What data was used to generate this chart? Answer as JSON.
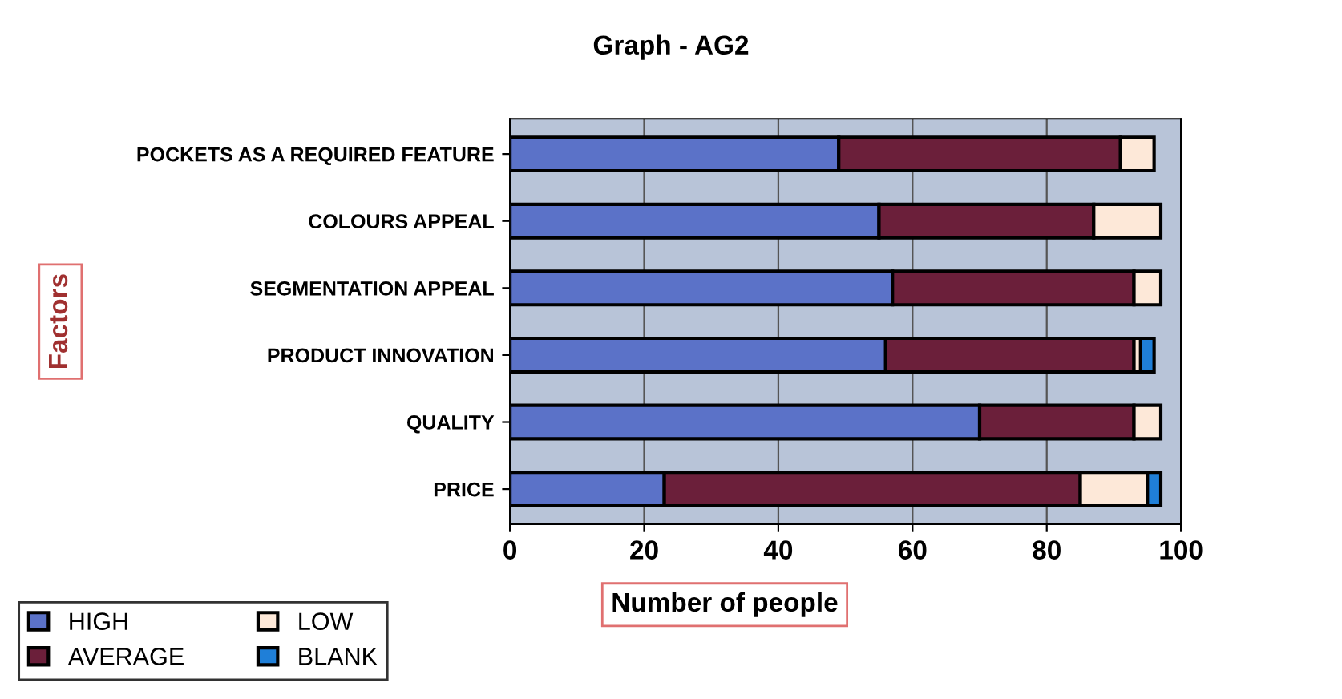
{
  "chart_data": {
    "type": "bar",
    "orientation": "horizontal",
    "stacked": true,
    "title": "Graph - AG2",
    "xlabel": "Number of people",
    "ylabel": "Factors",
    "categories": [
      "POCKETS AS A REQUIRED FEATURE",
      "COLOURS APPEAL",
      "SEGMENTATION APPEAL",
      "PRODUCT INNOVATION",
      "QUALITY",
      "PRICE"
    ],
    "series": [
      {
        "name": "HIGH",
        "color": "#5b72c8",
        "values": [
          49,
          55,
          57,
          56,
          70,
          23
        ]
      },
      {
        "name": "AVERAGE",
        "color": "#6b1f3a",
        "values": [
          42,
          32,
          36,
          37,
          23,
          62
        ]
      },
      {
        "name": "LOW",
        "color": "#fde8d8",
        "values": [
          5,
          10,
          4,
          1,
          4,
          10
        ]
      },
      {
        "name": "BLANK",
        "color": "#1f7fd8",
        "values": [
          null,
          null,
          null,
          2,
          null,
          2
        ]
      }
    ],
    "xlim": [
      0,
      100
    ],
    "xticks": [
      0,
      20,
      40,
      60,
      80,
      100
    ],
    "grid": "x",
    "legend": "bottom left"
  }
}
